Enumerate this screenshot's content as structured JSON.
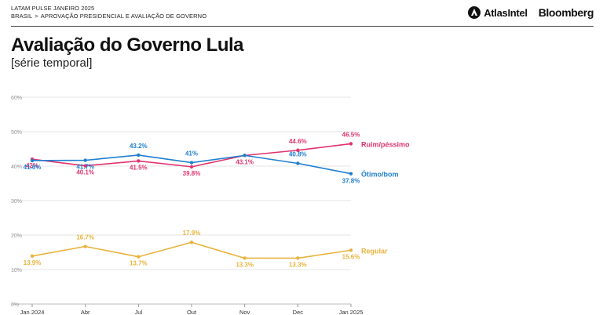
{
  "header": {
    "kicker": "LATAM PULSE JANEIRO 2025",
    "breadcrumb_country": "BRASIL",
    "breadcrumb_separator": ">",
    "breadcrumb_topic": "APROVAÇÃO PRESIDENCIAL E AVALIAÇÃO DE GOVERNO",
    "logo_atlas": "AtlasIntel",
    "logo_bloomberg": "Bloomberg"
  },
  "title": "Avaliação do Governo Lula",
  "subtitle": "[série temporal]",
  "colors": {
    "ruim": "#e0336d",
    "otimo": "#1f7fd0",
    "regular": "#e8b33c",
    "grid": "#e6e6e6",
    "axis_text": "#999999"
  },
  "chart_data": {
    "type": "line",
    "categories": [
      "Jan 2024",
      "Abr",
      "Jul",
      "Out",
      "Nov",
      "Dec",
      "Jan 2025"
    ],
    "ylim": [
      0,
      60
    ],
    "yticks": [
      "0%",
      "10%",
      "20%",
      "30%",
      "40%",
      "50%",
      "60%"
    ],
    "grid": true,
    "series": [
      {
        "name": "Ruim/péssimo",
        "key": "ruim",
        "values": [
          42.0,
          40.1,
          41.5,
          39.8,
          43.1,
          44.6,
          46.5
        ],
        "labels": [
          "42%",
          "40.1%",
          "41.5%",
          "39.8%",
          "43.1%",
          "44.6%",
          "46.5%"
        ]
      },
      {
        "name": "Ótimo/bom",
        "key": "otimo",
        "values": [
          41.6,
          41.7,
          43.2,
          41.0,
          43.1,
          40.8,
          37.8
        ],
        "labels": [
          "41.6%",
          "41.7%",
          "43.2%",
          "41%",
          "",
          "40.8%",
          "37.8%"
        ]
      },
      {
        "name": "Regular",
        "key": "regular",
        "values": [
          13.9,
          16.7,
          13.7,
          17.9,
          13.3,
          13.3,
          15.6
        ],
        "labels": [
          "13.9%",
          "16.7%",
          "13.7%",
          "17.9%",
          "13.3%",
          "13.3%",
          "15.6%"
        ]
      }
    ]
  }
}
